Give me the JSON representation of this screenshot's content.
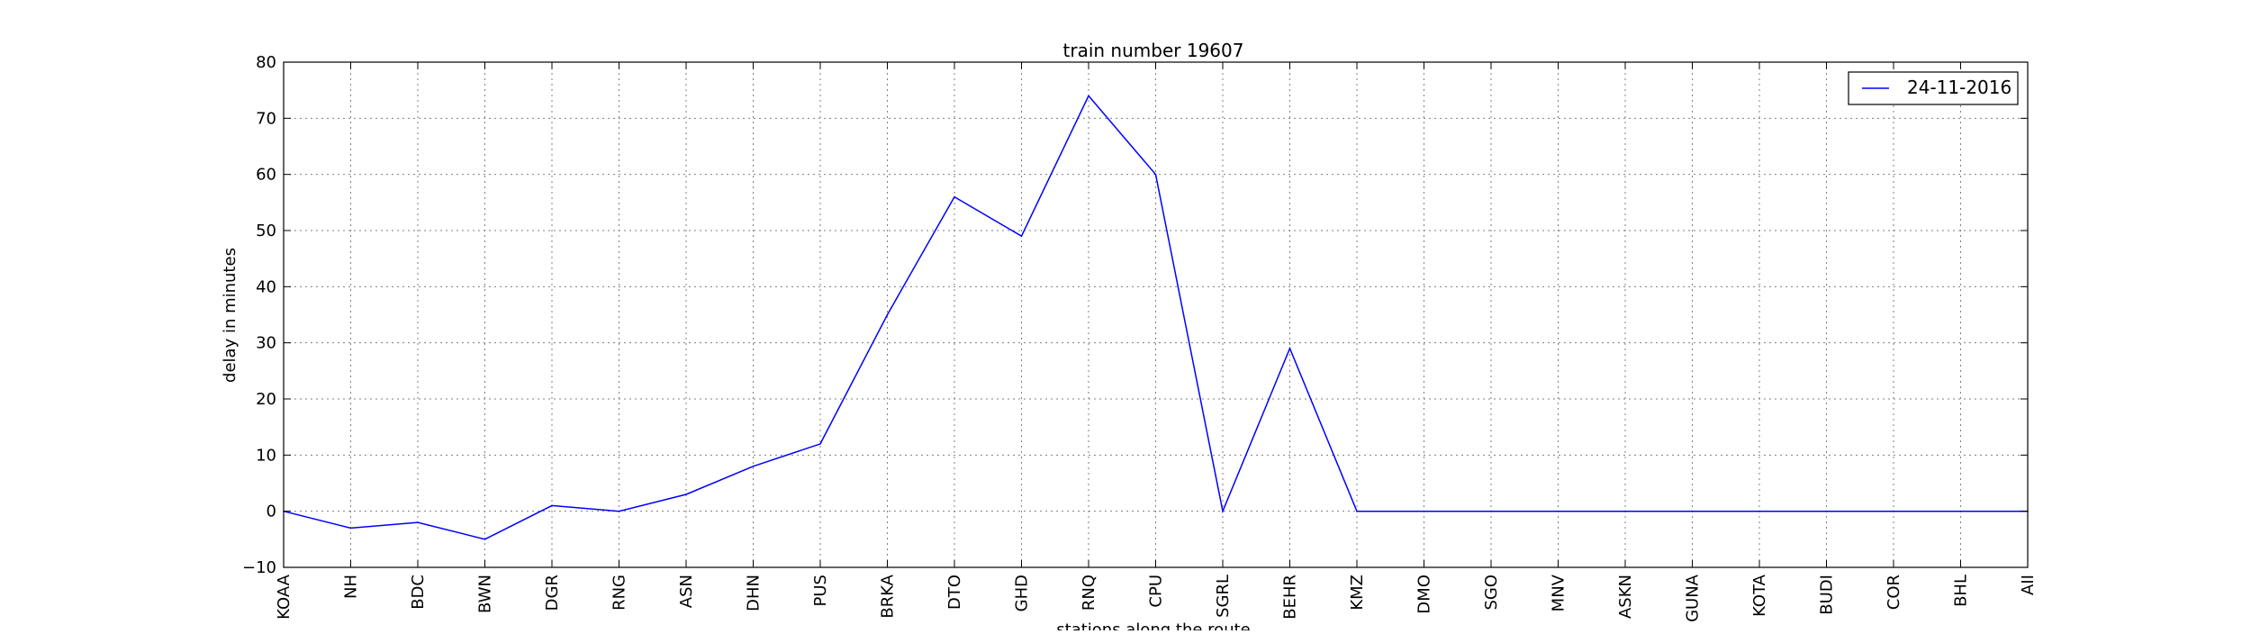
{
  "chart_data": {
    "type": "line",
    "title": "train number 19607",
    "xlabel": "stations along the route",
    "ylabel": "delay in minutes",
    "ylim": [
      -10,
      80
    ],
    "yticks": [
      -10,
      0,
      10,
      20,
      30,
      40,
      50,
      60,
      70,
      80
    ],
    "grid": true,
    "legend_position": "top-right",
    "line_color": "#0000ff",
    "categories": [
      "KOAA",
      "NH",
      "BDC",
      "BWN",
      "DGR",
      "RNG",
      "ASN",
      "DHN",
      "PUS",
      "BRKA",
      "DTO",
      "GHD",
      "RNQ",
      "CPU",
      "SGRL",
      "BEHR",
      "KMZ",
      "DMO",
      "SGO",
      "MNV",
      "ASKN",
      "GUNA",
      "KOTA",
      "BUDI",
      "COR",
      "BHL",
      "AII"
    ],
    "series": [
      {
        "name": "24-11-2016",
        "values": [
          0,
          -3,
          -2,
          -5,
          1,
          0,
          3,
          8,
          12,
          35,
          56,
          49,
          74,
          60,
          0,
          29,
          0,
          0,
          0,
          0,
          0,
          0,
          0,
          0,
          0,
          0,
          0
        ]
      }
    ]
  }
}
